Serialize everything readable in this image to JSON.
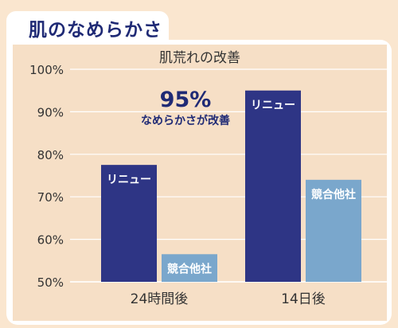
{
  "header": {
    "title": "肌のなめらかさ"
  },
  "chart_data": {
    "type": "bar",
    "title": "肌荒れの改善",
    "categories": [
      "24時間後",
      "14日後"
    ],
    "series": [
      {
        "name": "リニュー",
        "values": [
          77.5,
          95
        ],
        "color": "#2e3585"
      },
      {
        "name": "競合他社",
        "values": [
          56.5,
          74
        ],
        "color": "#7aa7cc"
      }
    ],
    "ylim": [
      50,
      100
    ],
    "yticks": [
      50,
      60,
      70,
      80,
      90,
      100
    ],
    "ytick_labels": [
      "50%",
      "60%",
      "70%",
      "80%",
      "90%",
      "100%"
    ],
    "grid": true,
    "annotation": {
      "value": "95%",
      "text": "なめらかさが改善"
    }
  }
}
